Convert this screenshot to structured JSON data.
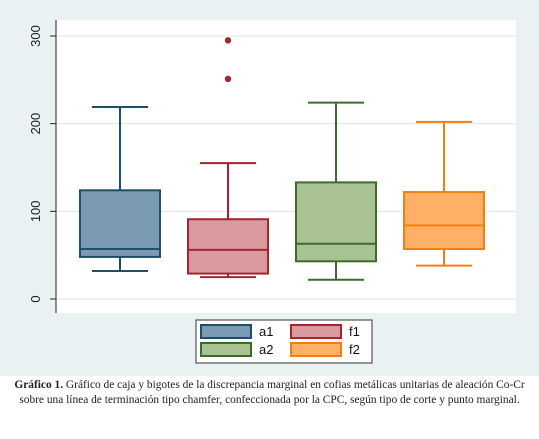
{
  "chart_data": {
    "type": "boxplot",
    "ylim": [
      0,
      300
    ],
    "yticks": [
      "0",
      "100",
      "200",
      "300"
    ],
    "grid": true,
    "legend_position": "bottom",
    "series": [
      {
        "name": "a1",
        "color": "#7a9ab3",
        "stroke": "#1f4e6b",
        "whisker_low": 32,
        "q1": 48,
        "median": 57,
        "q3": 124,
        "whisker_high": 219,
        "outliers": []
      },
      {
        "name": "f1",
        "color": "#d9999e",
        "stroke": "#a3252e",
        "whisker_low": 25,
        "q1": 29,
        "median": 56,
        "q3": 91,
        "whisker_high": 155,
        "outliers": [
          251,
          295
        ]
      },
      {
        "name": "a2",
        "color": "#a8c294",
        "stroke": "#3d6b2e",
        "whisker_low": 22,
        "q1": 43,
        "median": 63,
        "q3": 133,
        "whisker_high": 224,
        "outliers": []
      },
      {
        "name": "f2",
        "color": "#ffb067",
        "stroke": "#f07f12",
        "whisker_low": 38,
        "q1": 57,
        "median": 84,
        "q3": 122,
        "whisker_high": 202,
        "outliers": []
      }
    ]
  },
  "caption": {
    "label": "Gráfico 1.",
    "text": " Gráfico de caja y bigotes de la discrepancia marginal en cofias metálicas unitarias de aleación Co-Cr sobre una línea de terminación tipo chamfer, confeccionada por la CPC, según tipo de corte y punto marginal."
  }
}
